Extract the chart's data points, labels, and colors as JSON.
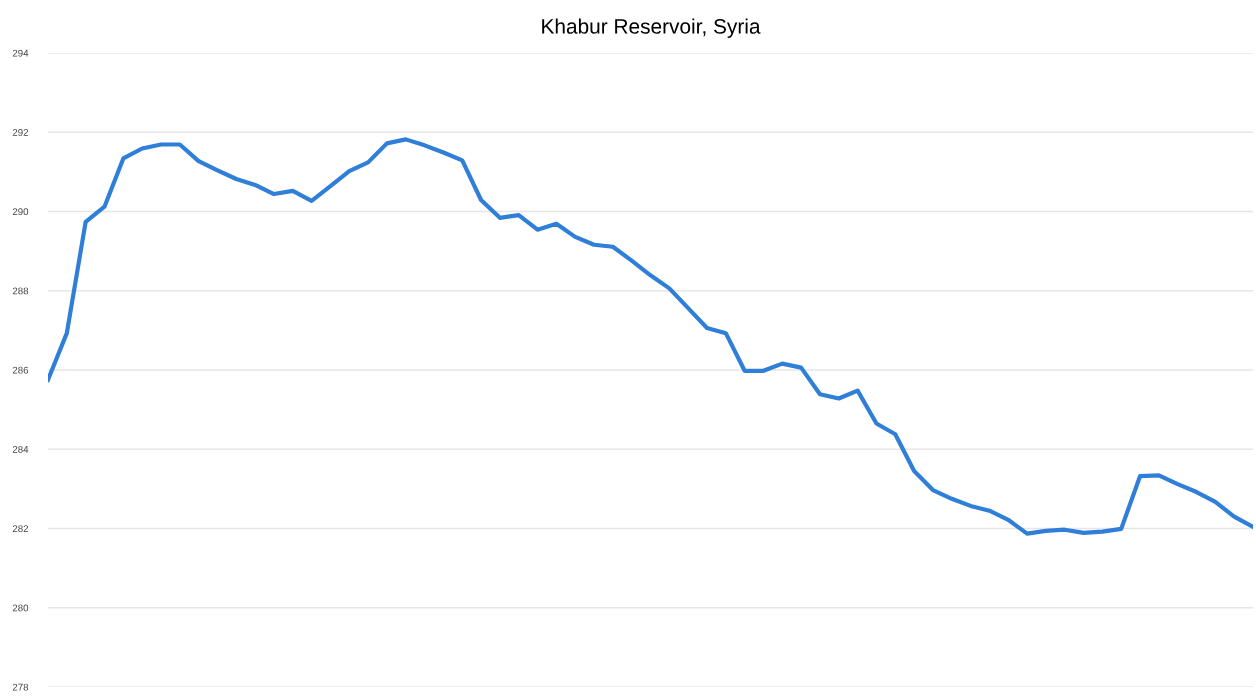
{
  "chart_data": {
    "type": "line",
    "title": "Khabur Reservoir, Syria",
    "categories": [
      null,
      null,
      null,
      null,
      null,
      null,
      null,
      null,
      null,
      null,
      null,
      null,
      null,
      null,
      null,
      null,
      null,
      null,
      null,
      null,
      null,
      null,
      null,
      null,
      null,
      null,
      null,
      null,
      null,
      null,
      null,
      null,
      null,
      null,
      null,
      null,
      null,
      null,
      null,
      null,
      null,
      null,
      null,
      null,
      null,
      null,
      null,
      null,
      null,
      null,
      null,
      null,
      null,
      null,
      null,
      null,
      null,
      null,
      null,
      null,
      null,
      null,
      null,
      null,
      null
    ],
    "series": [
      {
        "color": "#2f7ed8",
        "values": [
          285.75,
          286.93,
          289.74,
          290.12,
          291.34,
          291.59,
          291.69,
          291.69,
          291.27,
          291.04,
          290.82,
          290.67,
          290.44,
          290.52,
          290.27,
          290.64,
          291.02,
          291.24,
          291.72,
          291.82,
          291.67,
          291.49,
          291.29,
          290.29,
          289.84,
          289.91,
          289.54,
          289.69,
          289.36,
          289.16,
          289.11,
          288.76,
          288.39,
          288.06,
          287.56,
          287.06,
          286.93,
          285.98,
          285.98,
          286.16,
          286.06,
          285.39,
          285.28,
          285.48,
          284.65,
          284.38,
          283.45,
          282.97,
          282.75,
          282.57,
          282.45,
          282.22,
          281.87,
          281.94,
          281.97,
          281.89,
          281.92,
          281.99,
          283.32,
          283.34,
          283.12,
          282.92,
          282.67,
          282.3,
          282.04
        ]
      }
    ],
    "ylim": [
      278,
      294
    ],
    "yticks": [
      278,
      280,
      282,
      284,
      286,
      288,
      290,
      292,
      294
    ],
    "grid": "y",
    "legend": false,
    "tick_labels": "y",
    "marker": "none",
    "line_style": "solid"
  }
}
